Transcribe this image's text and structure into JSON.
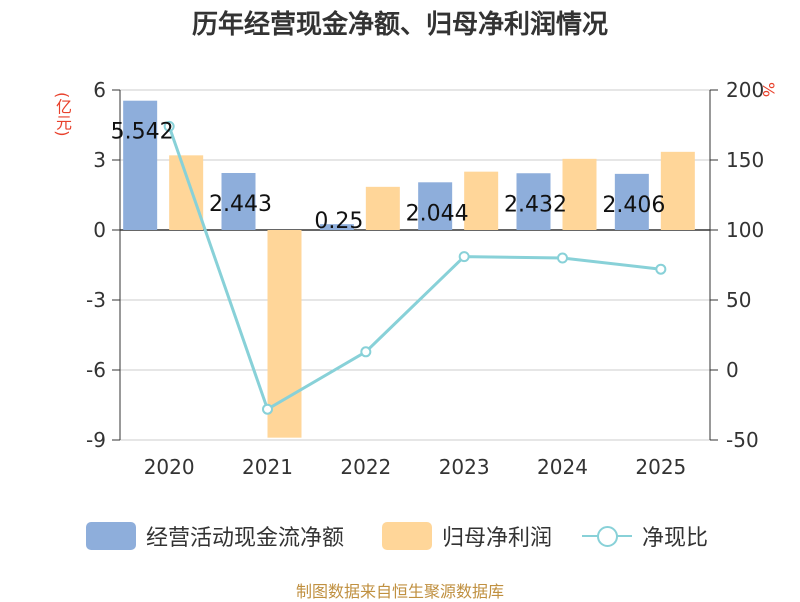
{
  "chart_data": {
    "type": "bar",
    "title": "历年经营现金净额、归母净利润情况",
    "ylabel": "(亿元)",
    "y2label": "%",
    "categories": [
      "2020",
      "2021",
      "2022",
      "2023",
      "2024",
      "2025"
    ],
    "ylim": [
      -9,
      6
    ],
    "yticks": [
      6,
      3,
      0,
      -3,
      -6,
      -9
    ],
    "y2lim": [
      -50,
      200
    ],
    "y2ticks": [
      200,
      150,
      100,
      50,
      0,
      -50
    ],
    "series": [
      {
        "name": "经营活动现金流净额",
        "type": "bar",
        "color": "#8eaedb",
        "values": [
          5.542,
          2.443,
          0.25,
          2.044,
          2.432,
          2.406
        ],
        "labels": [
          "5.542",
          "2.443",
          "0.25",
          "2.044",
          "2.432",
          "2.406"
        ]
      },
      {
        "name": "归母净利润",
        "type": "bar",
        "color": "#ffd699",
        "values": [
          3.2,
          -8.9,
          1.85,
          2.5,
          3.05,
          3.35
        ]
      },
      {
        "name": "净现比",
        "type": "line",
        "axis": "right",
        "color": "#88d1d8",
        "values": [
          174,
          -28,
          13,
          81,
          80,
          72
        ]
      }
    ],
    "legend_position": "bottom",
    "grid": true
  },
  "source": "制图数据来自恒生聚源数据库"
}
